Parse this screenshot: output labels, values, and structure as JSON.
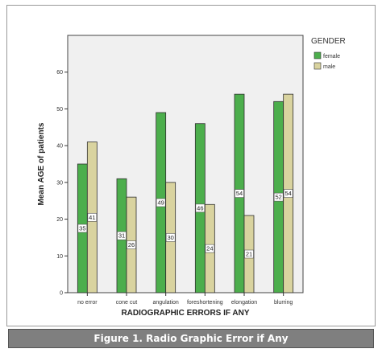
{
  "colors": {
    "plot_bg": "#f0f0f0",
    "female": "#4cae4c",
    "male": "#d9d39f",
    "bar_stroke": "#2f2f2f"
  },
  "caption": "Figure 1. Radio Graphic Error if Any",
  "chart_data": {
    "type": "bar",
    "title": "",
    "xlabel": "RADIOGRAPHIC ERRORS IF ANY",
    "ylabel": "Mean AGE of patients",
    "ylim": [
      0,
      70
    ],
    "yticks": [
      0,
      10,
      20,
      30,
      40,
      50,
      60
    ],
    "grid": false,
    "legend": {
      "title": "GENDER",
      "position": "right"
    },
    "categories": [
      "no error",
      "cone cut",
      "angulation",
      "foreshortening",
      "elongation",
      "blurring"
    ],
    "series": [
      {
        "name": "female",
        "values": [
          35,
          31,
          49,
          46,
          54,
          52
        ],
        "labels": [
          "35",
          "31",
          "49",
          "46",
          "54",
          "52"
        ]
      },
      {
        "name": "male",
        "values": [
          41,
          26,
          30,
          24,
          21,
          54
        ],
        "labels": [
          "41",
          "26",
          "30",
          "24",
          "21",
          "54"
        ]
      }
    ]
  }
}
